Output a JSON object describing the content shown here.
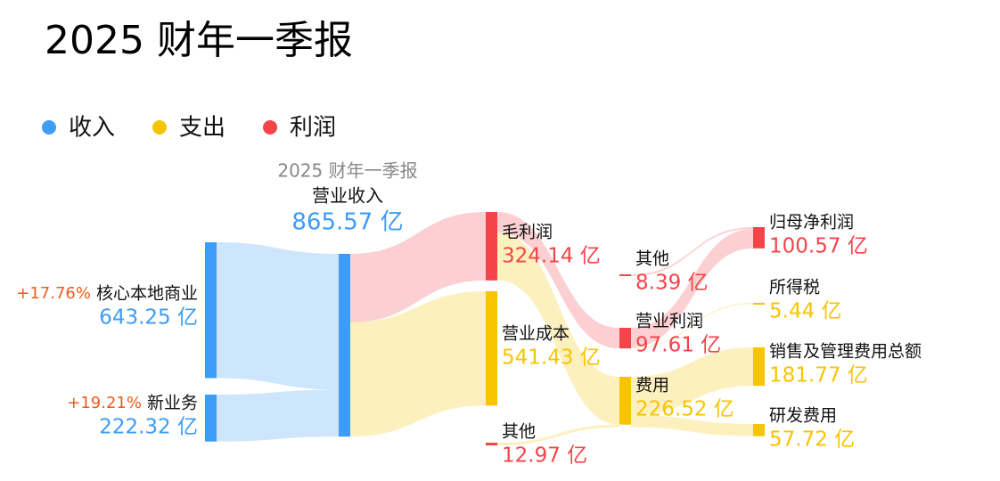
{
  "chart_data": {
    "type": "sankey",
    "title": "2025 财年一季报",
    "subtitle": "2025 财年一季报",
    "legend": [
      {
        "name": "收入",
        "color": "#3d9cf5"
      },
      {
        "name": "支出",
        "color": "#f8c400"
      },
      {
        "name": "利润",
        "color": "#f5434a"
      }
    ],
    "nodes": [
      {
        "name": "核心本地商业",
        "value": 643.25,
        "value_label": "643.25 亿",
        "group": 0,
        "growth": {
          "value": 17.76,
          "label": "+17.76%"
        }
      },
      {
        "name": "新业务",
        "value": 222.32,
        "value_label": "222.32 亿",
        "group": 0,
        "growth": {
          "value": 19.21,
          "label": "+19.21%"
        }
      },
      {
        "name": "营业收入",
        "value": 865.57,
        "value_label": "865.57 亿",
        "group": 0
      },
      {
        "name": "毛利润",
        "value": 324.14,
        "value_label": "324.14 亿",
        "group": 2
      },
      {
        "name": "营业成本",
        "value": 541.43,
        "value_label": "541.43 亿",
        "group": 1
      },
      {
        "name": "其他",
        "value": 12.97,
        "value_label": "12.97 亿",
        "group": 2
      },
      {
        "name": "其他",
        "value": 8.39,
        "value_label": "8.39 亿",
        "group": 2
      },
      {
        "name": "营业利润",
        "value": 97.61,
        "value_label": "97.61 亿",
        "group": 2
      },
      {
        "name": "费用",
        "value": 226.52,
        "value_label": "226.52 亿",
        "group": 1
      },
      {
        "name": "归母净利润",
        "value": 100.57,
        "value_label": "100.57 亿",
        "group": 2
      },
      {
        "name": "所得税",
        "value": 5.44,
        "value_label": "5.44 亿",
        "group": 1
      },
      {
        "name": "销售及管理费用总额",
        "value": 181.77,
        "value_label": "181.77 亿",
        "group": 1
      },
      {
        "name": "研发费用",
        "value": 57.72,
        "value_label": "57.72 亿",
        "group": 1
      }
    ],
    "links": [
      {
        "source": 0,
        "target": 2,
        "value": 643.25
      },
      {
        "source": 1,
        "target": 2,
        "value": 222.32
      },
      {
        "source": 2,
        "target": 3,
        "value": 324.14
      },
      {
        "source": 2,
        "target": 4,
        "value": 541.43
      },
      {
        "source": 3,
        "target": 7,
        "value": 97.61
      },
      {
        "source": 3,
        "target": 8,
        "value": 226.52
      },
      {
        "source": 5,
        "target": 8,
        "value": 12.97
      },
      {
        "source": 6,
        "target": 9,
        "value": 8.39
      },
      {
        "source": 7,
        "target": 9,
        "value": 92.17
      },
      {
        "source": 7,
        "target": 10,
        "value": 5.44
      },
      {
        "source": 8,
        "target": 11,
        "value": 181.77
      },
      {
        "source": 8,
        "target": 12,
        "value": 57.72
      }
    ]
  }
}
